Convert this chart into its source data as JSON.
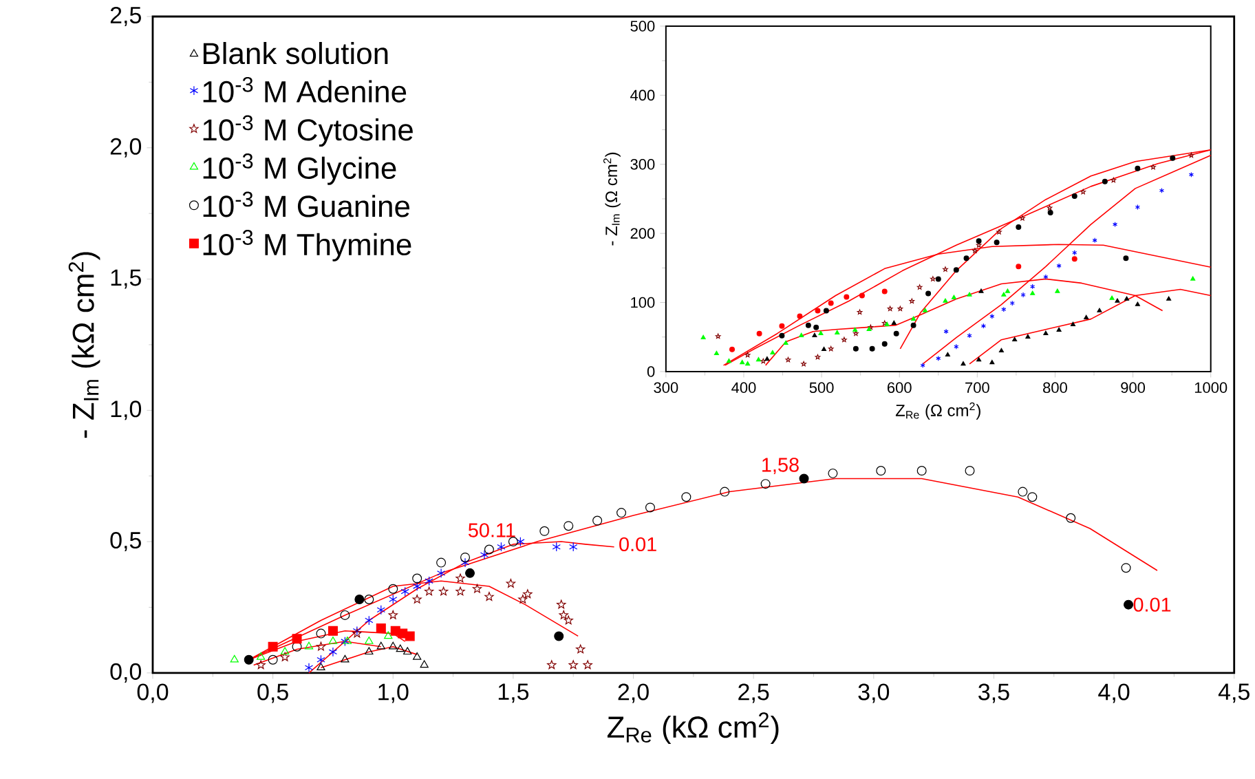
{
  "chart_data": [
    {
      "type": "scatter",
      "xlabel": "Z$_{Re}$ (kΩ cm$^{2}$)",
      "ylabel": "- Z$_{Im}$ (kΩ cm$^{2}$)",
      "xlim": [
        0,
        4.5
      ],
      "ylim": [
        0,
        2.5
      ],
      "xticks": [
        {
          "value": 0,
          "label": "0,0"
        },
        {
          "value": 0.5,
          "label": "0,5"
        },
        {
          "value": 1,
          "label": "1,0"
        },
        {
          "value": 1.5,
          "label": "1,5"
        },
        {
          "value": 2,
          "label": "2,0"
        },
        {
          "value": 2.5,
          "label": "2,5"
        },
        {
          "value": 3,
          "label": "3,0"
        },
        {
          "value": 3.5,
          "label": "3,5"
        },
        {
          "value": 4,
          "label": "4,0"
        },
        {
          "value": 4.5,
          "label": "4,5"
        }
      ],
      "yticks": [
        {
          "value": 0,
          "label": "0,0"
        },
        {
          "value": 0.5,
          "label": "0,5"
        },
        {
          "value": 1,
          "label": "1,0"
        },
        {
          "value": 1.5,
          "label": "1,5"
        },
        {
          "value": 2,
          "label": "2,0"
        },
        {
          "value": 2.5,
          "label": "2,5"
        }
      ],
      "legend": "top left",
      "series": [
        {
          "name": "Blank solution",
          "color": "#000000",
          "marker": "triangle",
          "x": [
            0.7,
            0.8,
            0.9,
            0.95,
            1.0,
            1.03,
            1.06,
            1.1,
            1.13
          ],
          "values": [
            0.02,
            0.05,
            0.08,
            0.1,
            0.1,
            0.09,
            0.08,
            0.06,
            0.03
          ]
        },
        {
          "name": "10$^{-3}$ M Adenine",
          "color": "#0000ff",
          "marker": "cross",
          "x": [
            0.65,
            0.7,
            0.75,
            0.8,
            0.85,
            0.9,
            0.95,
            1.0,
            1.05,
            1.1,
            1.15,
            1.2,
            1.3,
            1.38,
            1.45,
            1.53,
            1.68,
            1.75
          ],
          "values": [
            0.02,
            0.05,
            0.08,
            0.12,
            0.16,
            0.2,
            0.24,
            0.28,
            0.31,
            0.33,
            0.35,
            0.38,
            0.42,
            0.45,
            0.48,
            0.5,
            0.48,
            0.48
          ]
        },
        {
          "name": "10$^{-3}$ M Cytosine",
          "color": "#800000",
          "marker": "star",
          "x": [
            0.45,
            0.55,
            0.7,
            0.85,
            1.0,
            1.1,
            1.15,
            1.21,
            1.28,
            1.28,
            1.35,
            1.4,
            1.49,
            1.54,
            1.56,
            1.7,
            1.71,
            1.73,
            1.78,
            1.66,
            1.75,
            1.81
          ],
          "values": [
            0.03,
            0.06,
            0.1,
            0.15,
            0.22,
            0.28,
            0.31,
            0.31,
            0.31,
            0.36,
            0.32,
            0.29,
            0.34,
            0.28,
            0.3,
            0.26,
            0.22,
            0.2,
            0.09,
            0.03,
            0.03,
            0.03
          ]
        },
        {
          "name": "10$^{-3}$ M Glycine",
          "color": "#00ff00",
          "marker": "triangle",
          "x": [
            0.34,
            0.45,
            0.55,
            0.65,
            0.75,
            0.81,
            0.9,
            0.98
          ],
          "values": [
            0.05,
            0.06,
            0.08,
            0.1,
            0.12,
            0.12,
            0.12,
            0.14
          ]
        },
        {
          "name": "10$^{-3}$ M Guanine",
          "color": "#000000",
          "marker": "circle",
          "x": [
            0.5,
            0.6,
            0.7,
            0.8,
            0.9,
            1.0,
            1.1,
            1.2,
            1.3,
            1.4,
            1.5,
            1.63,
            1.73,
            1.85,
            1.95,
            2.07,
            2.22,
            2.38,
            2.55,
            2.83,
            3.03,
            3.2,
            3.4,
            3.62,
            3.66,
            3.82,
            4.05
          ],
          "values": [
            0.05,
            0.1,
            0.15,
            0.22,
            0.28,
            0.32,
            0.36,
            0.42,
            0.44,
            0.47,
            0.5,
            0.54,
            0.56,
            0.58,
            0.61,
            0.63,
            0.67,
            0.69,
            0.72,
            0.76,
            0.77,
            0.77,
            0.77,
            0.69,
            0.67,
            0.59,
            0.4
          ]
        },
        {
          "name": "10$^{-3}$ M Thymine",
          "color": "#ff0000",
          "marker": "square",
          "x": [
            0.5,
            0.6,
            0.75,
            0.95,
            1.01,
            1.04,
            1.07
          ],
          "values": [
            0.1,
            0.13,
            0.16,
            0.17,
            0.16,
            0.15,
            0.14
          ]
        },
        {
          "color": "#000000",
          "marker": "circle",
          "x": [
            0.4,
            0.86,
            1.32,
            1.69,
            2.71,
            4.06
          ],
          "values": [
            0.05,
            0.28,
            0.38,
            0.14,
            0.74,
            0.26
          ]
        },
        {
          "type": "line",
          "color": "#ff0000",
          "x": [
            0.4,
            0.8,
            1.2,
            1.6,
            2.0,
            2.4,
            2.84,
            3.2,
            3.6,
            3.9,
            4.18
          ],
          "values": [
            0.05,
            0.22,
            0.38,
            0.5,
            0.6,
            0.69,
            0.74,
            0.74,
            0.67,
            0.55,
            0.39
          ]
        },
        {
          "type": "line",
          "color": "#ff0000",
          "x": [
            0.65,
            0.9,
            1.1,
            1.3,
            1.5,
            1.7,
            1.8,
            1.92
          ],
          "values": [
            0.0,
            0.2,
            0.32,
            0.42,
            0.49,
            0.5,
            0.49,
            0.48
          ]
        },
        {
          "type": "line",
          "color": "#ff0000",
          "x": [
            0.4,
            0.7,
            1.0,
            1.2,
            1.4,
            1.55,
            1.77
          ],
          "values": [
            0.05,
            0.2,
            0.33,
            0.35,
            0.33,
            0.26,
            0.14
          ]
        },
        {
          "type": "line",
          "color": "#ff0000",
          "x": [
            0.4,
            0.6,
            0.8,
            1.0,
            1.05
          ],
          "values": [
            0.05,
            0.12,
            0.16,
            0.15,
            0.12
          ]
        },
        {
          "type": "line",
          "color": "#ff0000",
          "x": [
            0.42,
            0.6,
            0.8,
            0.95
          ],
          "values": [
            0.03,
            0.09,
            0.12,
            0.1
          ]
        },
        {
          "type": "line",
          "color": "#ff0000",
          "x": [
            0.7,
            0.9,
            1.0,
            1.1
          ],
          "values": [
            0.02,
            0.08,
            0.1,
            0.07
          ]
        }
      ],
      "annotations": [
        {
          "text": "50.11",
          "x": 1.53,
          "y": 0.5
        },
        {
          "text": "0.01",
          "x": 1.92,
          "y": 0.49
        },
        {
          "text": "1,58",
          "x": 2.71,
          "y": 0.74
        },
        {
          "text": "0.01",
          "x": 4.06,
          "y": 0.26
        }
      ]
    },
    {
      "type": "scatter",
      "xlabel": "Z$_{Re}$ (Ω cm$^{2}$)",
      "ylabel": "- Z$_{Im}$ (Ω cm$^{2}$)",
      "xlim": [
        300,
        1000
      ],
      "ylim": [
        0,
        500
      ],
      "xticks": [
        300,
        400,
        500,
        600,
        700,
        800,
        900,
        1000
      ],
      "yticks": [
        0,
        100,
        200,
        300,
        400,
        500
      ],
      "series": [
        {
          "color": "#000000",
          "marker": "triangle",
          "x": [
            682,
            702,
            719,
            731,
            748,
            765,
            788,
            805,
            823,
            840,
            857,
            880,
            892,
            946
          ],
          "values": [
            11,
            17,
            13,
            30,
            46,
            50,
            55,
            60,
            68,
            78,
            88,
            102,
            105,
            105
          ]
        },
        {
          "color": "#0000ff",
          "marker": "cross",
          "x": [
            630,
            650,
            660,
            673,
            690,
            708,
            719,
            734,
            745,
            759,
            771,
            788,
            805,
            825,
            851,
            877,
            906,
            937,
            975
          ],
          "values": [
            9,
            19,
            58,
            36,
            52,
            66,
            80,
            90,
            99,
            111,
            123,
            137,
            153,
            172,
            190,
            213,
            238,
            262,
            285
          ]
        },
        {
          "color": "#800000",
          "marker": "star",
          "x": [
            367,
            405,
            425,
            457,
            477,
            495,
            512,
            529,
            544,
            549,
            563,
            581,
            588,
            601,
            616,
            626,
            643,
            659,
            697,
            702,
            728,
            758,
            793,
            836,
            875,
            926,
            975
          ],
          "values": [
            51,
            24,
            15,
            17,
            11,
            21,
            33,
            46,
            55,
            86,
            64,
            70,
            91,
            91,
            102,
            122,
            134,
            148,
            175,
            183,
            202,
            222,
            237,
            260,
            277,
            296,
            313
          ]
        },
        {
          "color": "#00ff00",
          "marker": "triangle",
          "x": [
            348,
            365,
            381,
            398,
            405,
            419,
            437,
            454,
            474,
            499,
            520,
            543,
            561,
            584,
            618,
            633,
            659,
            670,
            690,
            734,
            739,
            771,
            803,
            873,
            977
          ],
          "values": [
            49,
            26,
            15,
            13,
            11,
            17,
            27,
            41,
            52,
            55,
            56,
            60,
            61,
            68,
            76,
            88,
            102,
            107,
            111,
            111,
            116,
            113,
            116,
            106,
            134
          ]
        },
        {
          "color": "#000000",
          "marker": "circle",
          "x": [
            449,
            483,
            493,
            506,
            544,
            565,
            581,
            596,
            618,
            637,
            650,
            673,
            686,
            702,
            725,
            753,
            794,
            825,
            864,
            891,
            906,
            951
          ],
          "values": [
            52,
            67,
            64,
            88,
            33,
            33,
            40,
            55,
            67,
            113,
            134,
            147,
            164,
            189,
            187,
            209,
            230,
            254,
            275,
            164,
            294,
            309
          ]
        },
        {
          "color": "#ff0000",
          "marker": "circle",
          "x": [
            385,
            420,
            449,
            472,
            495,
            512,
            532,
            552,
            581,
            753,
            825
          ],
          "values": [
            32,
            55,
            66,
            80,
            88,
            99,
            108,
            110,
            116,
            152,
            163
          ]
        },
        {
          "color": "#000000",
          "marker": "triangle",
          "x": [
            430,
            491,
            503,
            593,
            662,
            705,
            906
          ],
          "values": [
            18,
            52,
            32,
            70,
            24,
            116,
            97
          ]
        },
        {
          "type": "line",
          "color": "#ff0000",
          "x": [
            374,
            443,
            518,
            581,
            650,
            719,
            805,
            862,
            1000
          ],
          "values": [
            9,
            55,
            110,
            149,
            170,
            181,
            184,
            183,
            151
          ]
        },
        {
          "type": "line",
          "color": "#ff0000",
          "x": [
            428,
            454,
            489,
            518,
            558,
            595,
            627,
            673,
            731,
            788,
            834,
            903,
            938
          ],
          "values": [
            9,
            43,
            58,
            61,
            64,
            67,
            82,
            105,
            127,
            134,
            128,
            110,
            88
          ]
        },
        {
          "type": "line",
          "color": "#ff0000",
          "x": [
            376,
            414,
            472,
            535,
            604,
            673,
            760,
            846,
            932,
            1000
          ],
          "values": [
            9,
            33,
            67,
            102,
            146,
            183,
            225,
            268,
            301,
            321
          ]
        },
        {
          "type": "line",
          "color": "#ff0000",
          "x": [
            601,
            627,
            673,
            731,
            788,
            846,
            903,
            1000
          ],
          "values": [
            33,
            85,
            146,
            207,
            249,
            283,
            304,
            321
          ]
        },
        {
          "type": "line",
          "color": "#ff0000",
          "x": [
            630,
            673,
            731,
            788,
            846,
            903,
            1000
          ],
          "values": [
            11,
            49,
            97,
            152,
            213,
            265,
            313
          ]
        },
        {
          "type": "line",
          "color": "#ff0000",
          "x": [
            690,
            731,
            788,
            846,
            903,
            961,
            1000
          ],
          "values": [
            11,
            46,
            61,
            76,
            110,
            119,
            110
          ]
        }
      ]
    }
  ]
}
